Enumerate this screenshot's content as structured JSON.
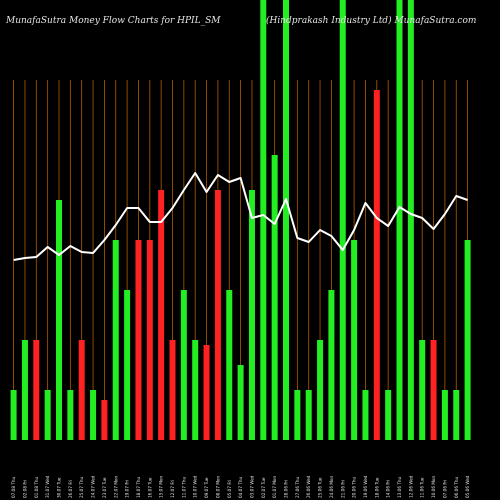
{
  "header": {
    "left": "MunafaSutra  Money Flow  Charts for HPIL_SM",
    "right": "(Hindprakash Industry Ltd) MunafaSutra.com"
  },
  "chart_data": {
    "type": "bar",
    "title": "MunafaSutra  Money Flow  Charts for HPIL_SM",
    "subtitle": "(Hindprakash Industry Ltd) MunafaSutra.com",
    "background": "#000000",
    "colors": {
      "up": "#22ee22",
      "down": "#ff2222",
      "line": "#ffffff",
      "grid": "#b25a00"
    },
    "grid": true,
    "ylim": [
      0,
      440
    ],
    "categories": [
      "07.08 Thu",
      "02.08 Fri",
      "01.08 Thu",
      "31.07 Wed",
      "30.07 Tue",
      "26.07 Fri",
      "25.07 Thu",
      "24.07 Wed",
      "23.07 Tue",
      "22.07 Mon",
      "19.07 Fri",
      "18.07 Thu",
      "16.07 Tue",
      "15.07 Mon",
      "12.07 Fri",
      "11.07 Thu",
      "10.07 Wed",
      "09.07 Tue",
      "08.07 Mon",
      "05.07 Fri",
      "04.07 Thu",
      "03.07 Wed",
      "02.07 Tue",
      "01.07 Mon",
      "28.06 Fri",
      "27.06 Thu",
      "26.06 Wed",
      "25.06 Tue",
      "24.06 Mon",
      "21.06 Fri",
      "20.06 Thu",
      "19.06 Wed",
      "18.06 Tue",
      "14.06 Fri",
      "13.06 Thu",
      "12.06 Wed",
      "11.06 Tue",
      "10.06 Mon",
      "07.06 Fri",
      "06.06 Thu",
      "05.06 Wed"
    ],
    "series": [
      {
        "values": [
          50,
          100,
          100,
          50,
          240,
          50,
          100,
          50,
          40,
          200,
          150,
          200,
          200,
          250,
          100,
          150,
          100,
          95,
          250,
          150,
          75,
          250,
          440,
          285,
          440,
          50,
          50,
          100,
          150,
          440,
          200,
          50,
          350,
          50,
          440,
          440,
          100,
          100,
          50,
          50,
          200
        ],
        "direction": [
          "up",
          "up",
          "down",
          "up",
          "up",
          "up",
          "down",
          "up",
          "down",
          "up",
          "up",
          "down",
          "down",
          "down",
          "down",
          "up",
          "up",
          "down",
          "down",
          "up",
          "up",
          "up",
          "up",
          "up",
          "up",
          "up",
          "up",
          "up",
          "up",
          "up",
          "up",
          "up",
          "down",
          "up",
          "up",
          "up",
          "up",
          "down",
          "up",
          "up",
          "up"
        ]
      },
      {
        "type": "line",
        "values": [
          180,
          182,
          183,
          193,
          185,
          194,
          188,
          187,
          200,
          215,
          232,
          232,
          218,
          218,
          232,
          250,
          267,
          248,
          265,
          258,
          262,
          222,
          225,
          216,
          241,
          202,
          198,
          210,
          204,
          190,
          210,
          237,
          222,
          214,
          233,
          226,
          222,
          211,
          226,
          244,
          240
        ]
      }
    ]
  }
}
